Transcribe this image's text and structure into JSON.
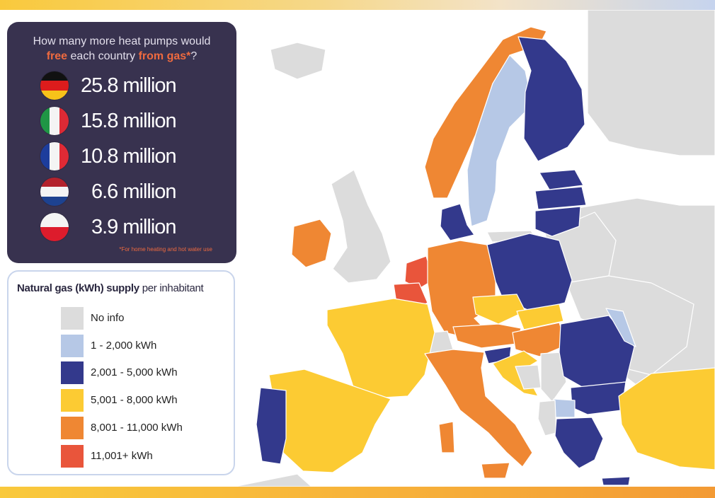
{
  "heat_pumps": {
    "question_part1": "How many more heat pumps would",
    "question_free": "free",
    "question_mid": "each country",
    "question_from_gas": "from gas*",
    "question_end": "?",
    "rows": [
      {
        "country": "Germany",
        "flag_icon": "germany-flag-icon",
        "value": "25.8 million"
      },
      {
        "country": "Italy",
        "flag_icon": "italy-flag-icon",
        "value": "15.8 million"
      },
      {
        "country": "France",
        "flag_icon": "france-flag-icon",
        "value": "10.8 million"
      },
      {
        "country": "Netherlands",
        "flag_icon": "netherlands-flag-icon",
        "value": "6.6 million"
      },
      {
        "country": "Poland",
        "flag_icon": "poland-flag-icon",
        "value": "3.9 million"
      }
    ],
    "footnote": "*For home heating and hot water use"
  },
  "legend": {
    "title_bold": "Natural gas (kWh) supply",
    "title_rest": " per inhabitant",
    "items": [
      {
        "label": "No info",
        "color": "#dcdcdc"
      },
      {
        "label": "1 - 2,000 kWh",
        "color": "#b6c8e6"
      },
      {
        "label": "2,001 - 5,000 kWh",
        "color": "#33398c"
      },
      {
        "label": "5,001 - 8,000 kWh",
        "color": "#fccb33"
      },
      {
        "label": "8,001 - 11,000 kWh",
        "color": "#ef8733"
      },
      {
        "label": "11,001+ kWh",
        "color": "#e9553b"
      }
    ]
  },
  "colors": {
    "panel_bg": "#38324f",
    "highlight": "#ee6a3f",
    "sea": "#ffffff",
    "border": "#ffffff"
  },
  "map": {
    "countries": [
      {
        "name": "Norway",
        "category": "8,001 - 11,000 kWh"
      },
      {
        "name": "Sweden",
        "category": "1 - 2,000 kWh"
      },
      {
        "name": "Finland",
        "category": "2,001 - 5,000 kWh"
      },
      {
        "name": "Estonia",
        "category": "2,001 - 5,000 kWh"
      },
      {
        "name": "Latvia",
        "category": "2,001 - 5,000 kWh"
      },
      {
        "name": "Lithuania",
        "category": "2,001 - 5,000 kWh"
      },
      {
        "name": "Denmark",
        "category": "2,001 - 5,000 kWh"
      },
      {
        "name": "Ireland",
        "category": "8,001 - 11,000 kWh"
      },
      {
        "name": "United Kingdom",
        "category": "No info"
      },
      {
        "name": "Netherlands",
        "category": "11,001+ kWh"
      },
      {
        "name": "Belgium",
        "category": "11,001+ kWh"
      },
      {
        "name": "Germany",
        "category": "8,001 - 11,000 kWh"
      },
      {
        "name": "Poland",
        "category": "2,001 - 5,000 kWh"
      },
      {
        "name": "France",
        "category": "5,001 - 8,000 kWh"
      },
      {
        "name": "Czechia",
        "category": "5,001 - 8,000 kWh"
      },
      {
        "name": "Slovakia",
        "category": "5,001 - 8,000 kWh"
      },
      {
        "name": "Austria",
        "category": "8,001 - 11,000 kWh"
      },
      {
        "name": "Hungary",
        "category": "8,001 - 11,000 kWh"
      },
      {
        "name": "Switzerland",
        "category": "No info"
      },
      {
        "name": "Slovenia",
        "category": "2,001 - 5,000 kWh"
      },
      {
        "name": "Croatia",
        "category": "5,001 - 8,000 kWh"
      },
      {
        "name": "Italy",
        "category": "8,001 - 11,000 kWh"
      },
      {
        "name": "Spain",
        "category": "5,001 - 8,000 kWh"
      },
      {
        "name": "Portugal",
        "category": "2,001 - 5,000 kWh"
      },
      {
        "name": "Romania",
        "category": "2,001 - 5,000 kWh"
      },
      {
        "name": "Moldova",
        "category": "1 - 2,000 kWh"
      },
      {
        "name": "Bulgaria",
        "category": "2,001 - 5,000 kWh"
      },
      {
        "name": "North Macedonia",
        "category": "1 - 2,000 kWh"
      },
      {
        "name": "Greece",
        "category": "2,001 - 5,000 kWh"
      },
      {
        "name": "Turkey",
        "category": "5,001 - 8,000 kWh"
      },
      {
        "name": "Serbia",
        "category": "No info"
      },
      {
        "name": "Bosnia and Herzegovina",
        "category": "No info"
      },
      {
        "name": "Albania",
        "category": "No info"
      },
      {
        "name": "Belarus",
        "category": "No info"
      },
      {
        "name": "Ukraine",
        "category": "No info"
      },
      {
        "name": "Russia",
        "category": "No info"
      },
      {
        "name": "Iceland",
        "category": "No info"
      },
      {
        "name": "Morocco",
        "category": "No info"
      }
    ]
  }
}
